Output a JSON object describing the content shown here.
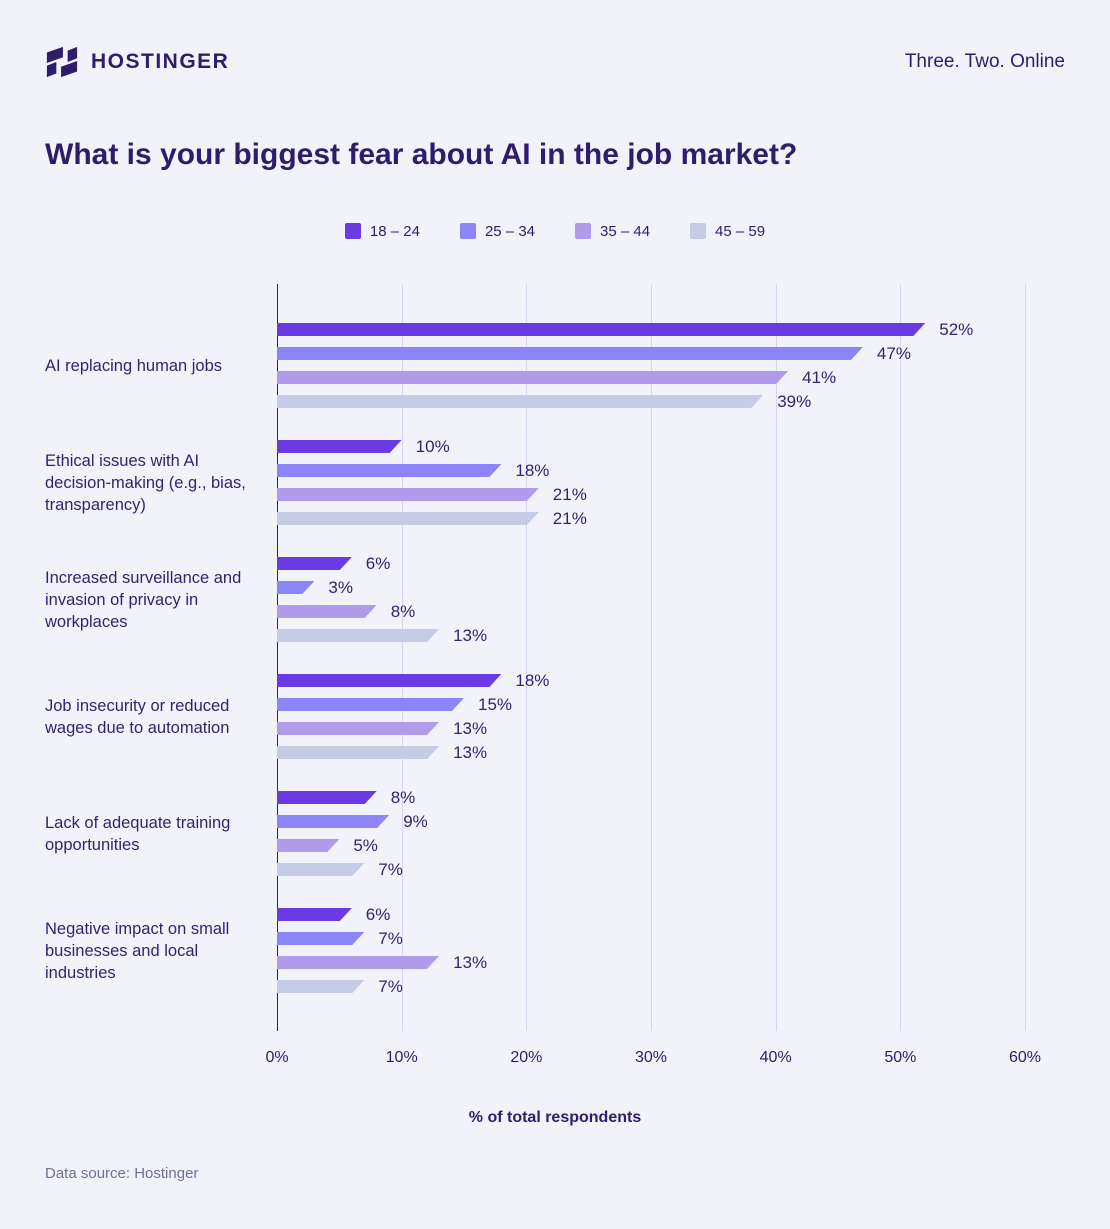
{
  "header": {
    "brand": "HOSTINGER",
    "tagline": "Three. Two. Online"
  },
  "title": "What is your biggest fear about AI in the job market?",
  "chart_data": {
    "type": "bar",
    "orientation": "horizontal",
    "title": "What is your biggest fear about AI in the job market?",
    "categories": [
      "AI replacing human jobs",
      "Ethical issues with AI decision-making (e.g., bias, transparency)",
      "Increased surveillance and invasion of privacy in workplaces",
      "Job insecurity or reduced wages due to automation",
      "Lack of adequate training opportunities",
      "Negative impact on small businesses and local industries"
    ],
    "series": [
      {
        "name": "18 – 24",
        "color": "#6A3BE3",
        "values": [
          52,
          10,
          6,
          18,
          8,
          6
        ]
      },
      {
        "name": "25 – 34",
        "color": "#8C85F9",
        "values": [
          47,
          18,
          3,
          15,
          9,
          7
        ]
      },
      {
        "name": "35 – 44",
        "color": "#B19BEB",
        "values": [
          41,
          21,
          8,
          13,
          5,
          13
        ]
      },
      {
        "name": "45 – 59",
        "color": "#C6CBE6",
        "values": [
          39,
          21,
          13,
          13,
          7,
          7
        ]
      }
    ],
    "value_suffix": "%",
    "xlabel": "% of total respondents",
    "x_ticks": [
      "0%",
      "10%",
      "20%",
      "30%",
      "40%",
      "50%",
      "60%"
    ],
    "xlim": [
      0,
      60
    ],
    "grid": true,
    "legend_position": "top",
    "colors_meaning": {
      "background": "#F2F2FB",
      "text_dark": "#2F1C6A",
      "gridline": "#D9D5F0"
    }
  },
  "footer": {
    "source": "Data source: Hostinger"
  }
}
